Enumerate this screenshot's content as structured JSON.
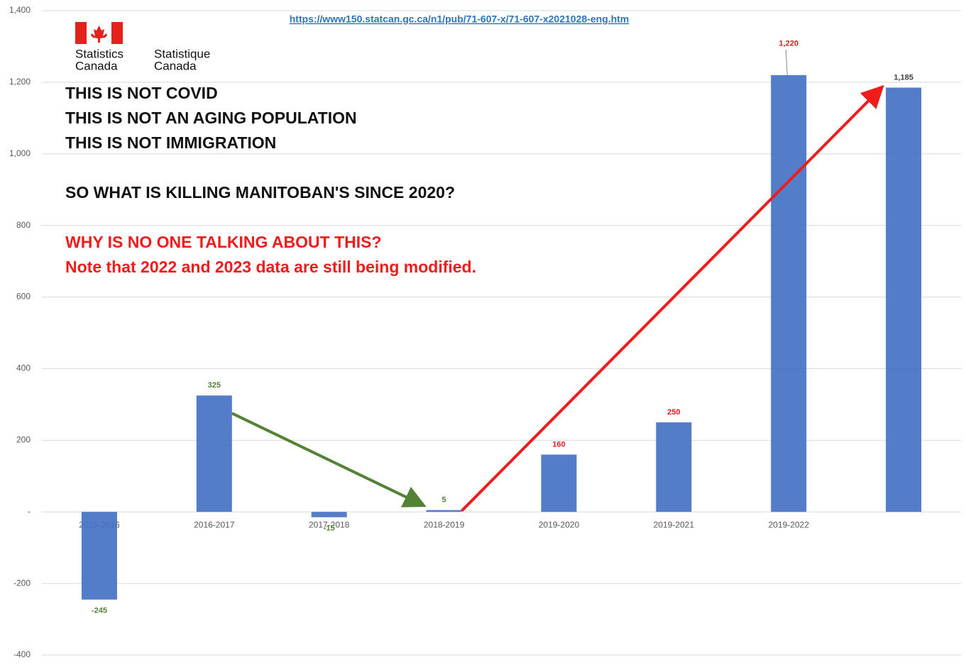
{
  "chart_data": {
    "type": "bar",
    "source_url": "https://www150.statcan.gc.ca/n1/pub/71-607-x/71-607-x2021028-eng.htm",
    "logo": {
      "english": [
        "Statistics",
        "Canada"
      ],
      "french": [
        "Statistique",
        "Canada"
      ]
    },
    "headlines": [
      "THIS IS NOT COVID",
      "THIS IS NOT AN AGING POPULATION",
      "THIS IS NOT IMMIGRATION",
      "SO WHAT IS KILLING MANITOBAN'S SINCE 2020?"
    ],
    "alerts": [
      "WHY IS NO ONE TALKING ABOUT THIS?",
      "Note that 2022 and 2023 data are still being modified."
    ],
    "categories": [
      "2015-2016",
      "2016-2017",
      "2017-2018",
      "2018-2019",
      "2019-2020",
      "2019-2021",
      "2019-2022",
      null
    ],
    "values": [
      -245,
      325,
      -15,
      5,
      160,
      250,
      1220,
      1185
    ],
    "value_labels": [
      "-245",
      "325",
      "-15",
      "5",
      "160",
      "250",
      "1,220",
      "1,185"
    ],
    "value_label_colors": [
      "#548235",
      "#548235",
      "#548235",
      "#548235",
      "#e31a1c",
      "#e31a1c",
      "#e31a1c",
      "#404040"
    ],
    "color": "#4472c4",
    "ylim": [
      -400,
      1400
    ],
    "yticks": [
      {
        "value": -400,
        "label": "-400"
      },
      {
        "value": -200,
        "label": "-200"
      },
      {
        "value": 0,
        "label": "-"
      },
      200,
      400,
      600,
      800,
      {
        "value": 1000,
        "label": "1,000"
      },
      {
        "value": 1200,
        "label": "1,200"
      },
      {
        "value": 1400,
        "label": "1,400"
      }
    ],
    "grid": true
  }
}
